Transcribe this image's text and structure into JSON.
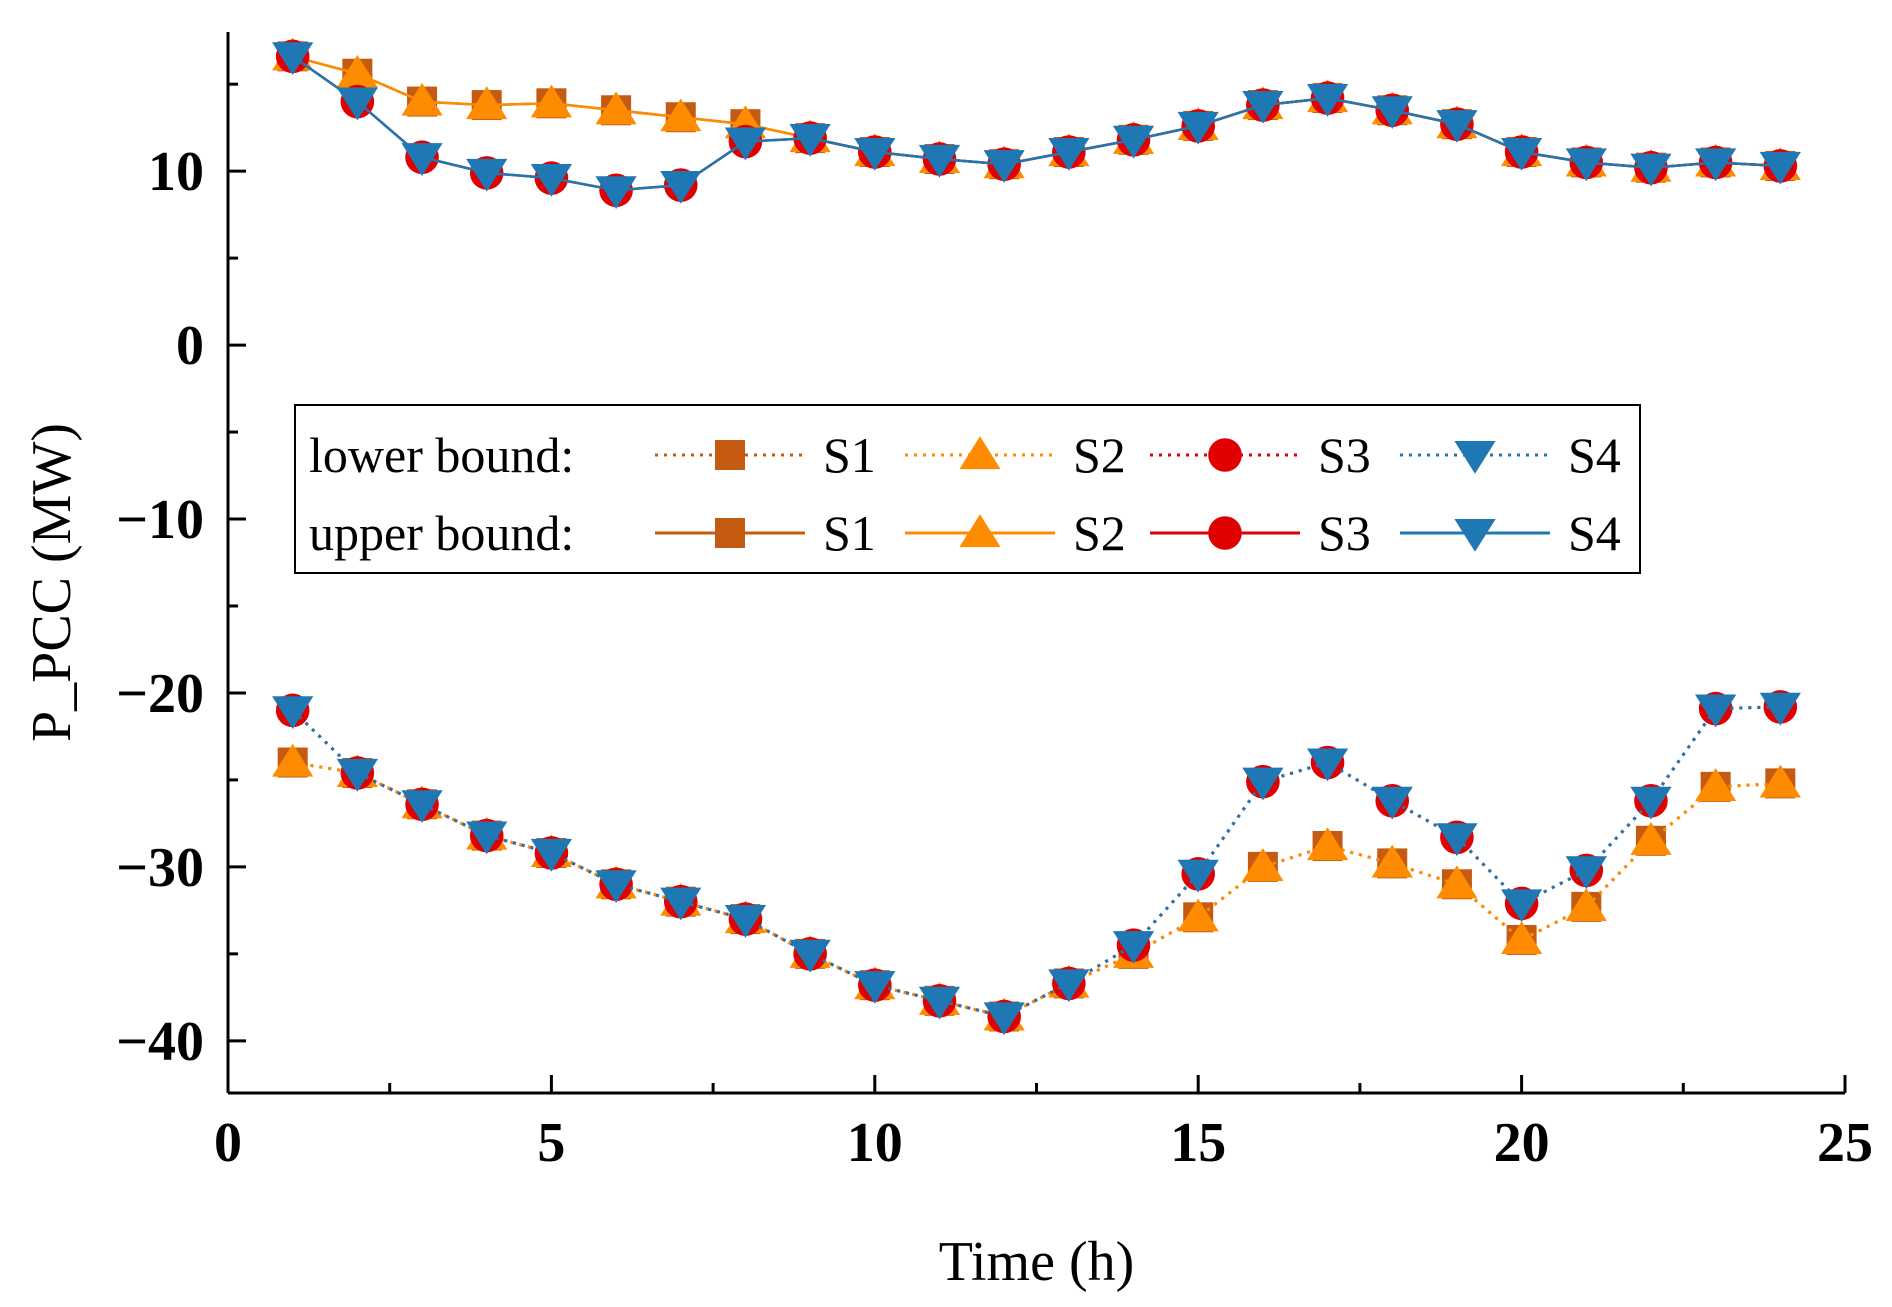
{
  "chart_data": {
    "type": "line",
    "title": "",
    "xlabel": "Time (h)",
    "ylabel": "P_PCC (MW)",
    "xlim": [
      0,
      25
    ],
    "ylim": [
      -43,
      18
    ],
    "xticks": [
      0,
      5,
      10,
      15,
      20,
      25
    ],
    "yticks": [
      -40,
      -30,
      -20,
      -10,
      0,
      10
    ],
    "grid": false,
    "legend_position": "center",
    "legend": {
      "rows": [
        {
          "label": "lower bound:",
          "line_style": "dotted",
          "entries": [
            "S1",
            "S2",
            "S3",
            "S4"
          ]
        },
        {
          "label": "upper bound:",
          "line_style": "solid",
          "entries": [
            "S1",
            "S2",
            "S3",
            "S4"
          ]
        }
      ]
    },
    "x": [
      1,
      2,
      3,
      4,
      5,
      6,
      7,
      8,
      9,
      10,
      11,
      12,
      13,
      14,
      15,
      16,
      17,
      18,
      19,
      20,
      21,
      22,
      23,
      24
    ],
    "series": [
      {
        "name": "S1",
        "bound": "lower",
        "style": "dotted",
        "marker": "square",
        "color": "#c55a11",
        "values": [
          -24.0,
          -24.6,
          -26.4,
          -28.2,
          -29.2,
          -31.0,
          -32.0,
          -33.0,
          -35.0,
          -36.8,
          -37.7,
          -38.6,
          -36.7,
          -35.0,
          -32.9,
          -30.0,
          -28.8,
          -29.8,
          -31.0,
          -34.2,
          -32.3,
          -28.5,
          -25.4,
          -25.2
        ]
      },
      {
        "name": "S2",
        "bound": "lower",
        "style": "dotted",
        "marker": "triangle-up",
        "color": "#ff8c00",
        "values": [
          -24.0,
          -24.6,
          -26.4,
          -28.2,
          -29.2,
          -31.0,
          -32.0,
          -33.0,
          -35.0,
          -36.8,
          -37.7,
          -38.6,
          -36.7,
          -35.0,
          -32.9,
          -30.0,
          -28.8,
          -29.8,
          -31.0,
          -34.2,
          -32.3,
          -28.5,
          -25.4,
          -25.2
        ]
      },
      {
        "name": "S3",
        "bound": "lower",
        "style": "dotted",
        "marker": "circle",
        "color": "#e00000",
        "values": [
          -21.0,
          -24.6,
          -26.4,
          -28.2,
          -29.2,
          -31.0,
          -32.0,
          -33.0,
          -35.0,
          -36.8,
          -37.7,
          -38.6,
          -36.7,
          -34.5,
          -30.4,
          -25.1,
          -24.0,
          -26.2,
          -28.3,
          -32.1,
          -30.2,
          -26.2,
          -20.9,
          -20.8
        ]
      },
      {
        "name": "S4",
        "bound": "lower",
        "style": "dotted",
        "marker": "triangle-down",
        "color": "#1f77b4",
        "values": [
          -21.0,
          -24.6,
          -26.4,
          -28.2,
          -29.2,
          -31.0,
          -32.0,
          -33.0,
          -35.0,
          -36.8,
          -37.7,
          -38.6,
          -36.7,
          -34.5,
          -30.4,
          -25.1,
          -24.0,
          -26.2,
          -28.3,
          -32.1,
          -30.2,
          -26.2,
          -20.9,
          -20.8
        ]
      },
      {
        "name": "S1",
        "bound": "upper",
        "style": "solid",
        "marker": "square",
        "color": "#c55a11",
        "values": [
          16.6,
          15.6,
          14.0,
          13.8,
          13.9,
          13.5,
          13.1,
          12.7,
          11.9,
          11.1,
          10.7,
          10.4,
          11.1,
          11.8,
          12.6,
          13.8,
          14.2,
          13.5,
          12.7,
          11.1,
          10.5,
          10.2,
          10.5,
          10.3
        ]
      },
      {
        "name": "S2",
        "bound": "upper",
        "style": "solid",
        "marker": "triangle-up",
        "color": "#ff8c00",
        "values": [
          16.6,
          15.6,
          14.0,
          13.8,
          13.9,
          13.5,
          13.1,
          12.7,
          11.9,
          11.1,
          10.7,
          10.4,
          11.1,
          11.8,
          12.6,
          13.8,
          14.2,
          13.5,
          12.7,
          11.1,
          10.5,
          10.2,
          10.5,
          10.3
        ]
      },
      {
        "name": "S3",
        "bound": "upper",
        "style": "solid",
        "marker": "circle",
        "color": "#e00000",
        "values": [
          16.6,
          14.0,
          10.8,
          9.9,
          9.6,
          8.9,
          9.2,
          11.7,
          11.9,
          11.1,
          10.7,
          10.4,
          11.1,
          11.8,
          12.6,
          13.8,
          14.2,
          13.5,
          12.7,
          11.1,
          10.5,
          10.2,
          10.5,
          10.3
        ]
      },
      {
        "name": "S4",
        "bound": "upper",
        "style": "solid",
        "marker": "triangle-down",
        "color": "#1f77b4",
        "values": [
          16.6,
          14.0,
          10.8,
          9.9,
          9.6,
          8.9,
          9.2,
          11.7,
          11.9,
          11.1,
          10.7,
          10.4,
          11.1,
          11.8,
          12.6,
          13.8,
          14.2,
          13.5,
          12.7,
          11.1,
          10.5,
          10.2,
          10.5,
          10.3
        ]
      }
    ]
  }
}
